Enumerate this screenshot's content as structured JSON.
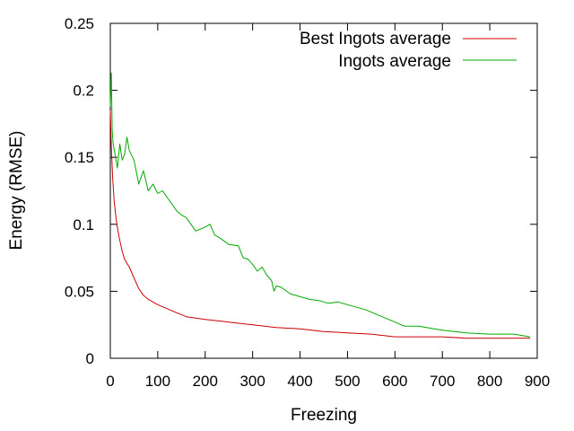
{
  "chart_data": {
    "type": "line",
    "title": "",
    "xlabel": "Freezing",
    "ylabel": "Energy (RMSE)",
    "xlim": [
      0,
      900
    ],
    "ylim": [
      0,
      0.25
    ],
    "xticks": [
      0,
      100,
      200,
      300,
      400,
      500,
      600,
      700,
      800,
      900
    ],
    "yticks": [
      0,
      0.05,
      0.1,
      0.15,
      0.2,
      0.25
    ],
    "xtick_labels": [
      "0",
      "100",
      "200",
      "300",
      "400",
      "500",
      "600",
      "700",
      "800",
      "900"
    ],
    "ytick_labels": [
      "0",
      "0.05",
      "0.1",
      "0.15",
      "0.2",
      "0.25"
    ],
    "grid": false,
    "legend_position": "top-right",
    "series": [
      {
        "name": "Best Ingots average",
        "color": "#cc0000",
        "x": [
          0,
          2,
          5,
          8,
          12,
          16,
          20,
          25,
          30,
          35,
          40,
          50,
          60,
          70,
          80,
          90,
          100,
          120,
          140,
          160,
          180,
          200,
          250,
          300,
          350,
          400,
          450,
          500,
          550,
          600,
          650,
          700,
          750,
          800,
          850,
          885
        ],
        "y": [
          0.185,
          0.158,
          0.135,
          0.118,
          0.105,
          0.095,
          0.088,
          0.08,
          0.074,
          0.071,
          0.068,
          0.06,
          0.052,
          0.047,
          0.044,
          0.042,
          0.04,
          0.037,
          0.034,
          0.031,
          0.03,
          0.029,
          0.027,
          0.025,
          0.023,
          0.022,
          0.02,
          0.019,
          0.018,
          0.016,
          0.016,
          0.016,
          0.015,
          0.015,
          0.015,
          0.015
        ]
      },
      {
        "name": "Ingots average",
        "color": "#00aa00",
        "x": [
          0,
          2,
          4,
          6,
          10,
          15,
          20,
          25,
          30,
          35,
          40,
          50,
          60,
          70,
          80,
          90,
          100,
          110,
          120,
          130,
          140,
          150,
          160,
          170,
          180,
          200,
          210,
          220,
          230,
          250,
          270,
          280,
          290,
          300,
          310,
          320,
          330,
          340,
          345,
          350,
          360,
          380,
          400,
          420,
          440,
          460,
          480,
          500,
          520,
          540,
          560,
          580,
          600,
          620,
          650,
          700,
          750,
          800,
          850,
          885
        ],
        "y": [
          0.188,
          0.213,
          0.17,
          0.16,
          0.152,
          0.142,
          0.16,
          0.148,
          0.152,
          0.165,
          0.155,
          0.148,
          0.13,
          0.14,
          0.125,
          0.13,
          0.123,
          0.125,
          0.12,
          0.115,
          0.11,
          0.107,
          0.105,
          0.1,
          0.095,
          0.098,
          0.1,
          0.092,
          0.09,
          0.085,
          0.084,
          0.075,
          0.074,
          0.07,
          0.065,
          0.068,
          0.062,
          0.058,
          0.05,
          0.054,
          0.053,
          0.048,
          0.046,
          0.044,
          0.043,
          0.041,
          0.042,
          0.04,
          0.038,
          0.036,
          0.033,
          0.03,
          0.027,
          0.024,
          0.024,
          0.021,
          0.019,
          0.018,
          0.018,
          0.016
        ]
      }
    ]
  }
}
